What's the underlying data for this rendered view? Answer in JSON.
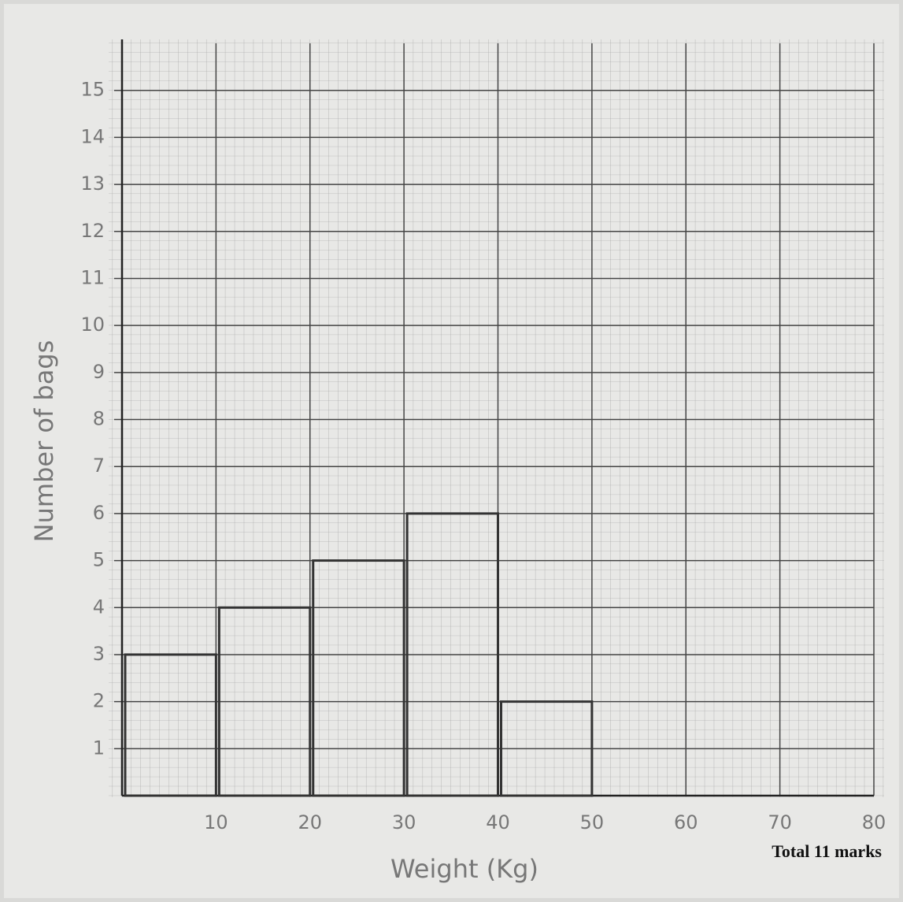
{
  "chart_data": {
    "type": "histogram",
    "x_label": "Weight (Kg)",
    "y_label": "Number of bags",
    "annotation": "Total 11 marks",
    "bins": [
      0,
      10,
      20,
      30,
      40,
      50
    ],
    "values": [
      3,
      4,
      5,
      6,
      2
    ],
    "color": "#333333",
    "xlim": [
      0,
      80
    ],
    "xticks": [
      10,
      20,
      30,
      40,
      50,
      60,
      70,
      80
    ],
    "ylim": [
      0,
      16
    ],
    "yticks": [
      1,
      2,
      3,
      4,
      5,
      6,
      7,
      8,
      9,
      10,
      11,
      12,
      13,
      14,
      15
    ],
    "grid": true
  }
}
